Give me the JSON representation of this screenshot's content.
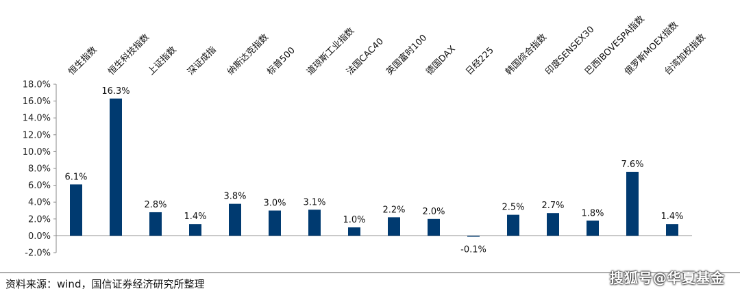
{
  "chart_data": {
    "type": "bar",
    "categories": [
      "恒生指数",
      "恒生科技指数",
      "上证指数",
      "深证成指",
      "纳斯达克指数",
      "标普500",
      "道琼斯工业指数",
      "法国CAC40",
      "英国富时100",
      "德国DAX",
      "日经225",
      "韩国综合指数",
      "印度SENSEX30",
      "巴西IBOVESPA指数",
      "俄罗斯MOEX指数",
      "台湾加权指数"
    ],
    "values": [
      6.1,
      16.3,
      2.8,
      1.4,
      3.8,
      3.0,
      3.1,
      1.0,
      2.2,
      2.0,
      -0.1,
      2.5,
      2.7,
      1.8,
      7.6,
      1.4
    ],
    "value_labels": [
      "6.1%",
      "16.3%",
      "2.8%",
      "1.4%",
      "3.8%",
      "3.0%",
      "3.1%",
      "1.0%",
      "2.2%",
      "2.0%",
      "-0.1%",
      "2.5%",
      "2.7%",
      "1.8%",
      "7.6%",
      "1.4%"
    ],
    "ylim": [
      -2.0,
      18.0
    ],
    "yticks": [
      18.0,
      16.0,
      14.0,
      12.0,
      10.0,
      8.0,
      6.0,
      4.0,
      2.0,
      0.0,
      -2.0
    ],
    "ytick_labels": [
      "18.0%",
      "16.0%",
      "14.0%",
      "12.0%",
      "10.0%",
      "8.0%",
      "6.0%",
      "4.0%",
      "2.0%",
      "0.0%",
      "-2.0%"
    ],
    "bar_color": "#003a70",
    "grid": false,
    "legend": "none"
  },
  "source": "资料来源：wind，国信证券经济研究所整理",
  "watermark": "搜狐号@华夏基金"
}
